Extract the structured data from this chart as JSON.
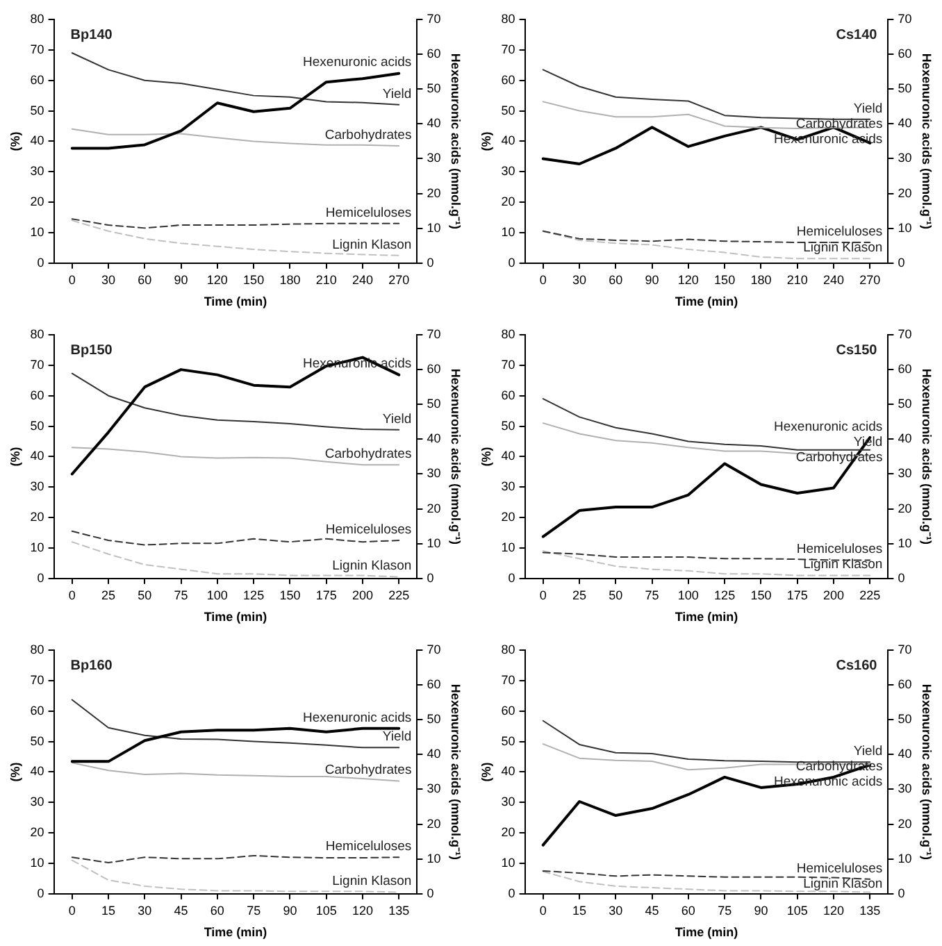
{
  "chart_data": [
    {
      "type": "line",
      "title": "Bp140",
      "xlabel": "Time (min)",
      "ylabel": "(%)",
      "y2label": "Hexenuronic acids (mmol.g⁻¹)",
      "categories": [
        "0",
        "30",
        "60",
        "90",
        "120",
        "150",
        "180",
        "210",
        "240",
        "270"
      ],
      "ylim": [
        0,
        80
      ],
      "yticks": [
        0,
        10,
        20,
        30,
        40,
        50,
        60,
        70,
        80
      ],
      "y2lim": [
        0,
        70
      ],
      "y2ticks": [
        0,
        10,
        20,
        30,
        40,
        50,
        60,
        70
      ],
      "grid": false,
      "legend": false,
      "marker": "none",
      "series": [
        {
          "name": "Hexenuronic acids",
          "color": "#000000",
          "axis": "y2",
          "line_style": "solid",
          "values": [
            33,
            33,
            34,
            38,
            46,
            43.5,
            44.5,
            52,
            53,
            54.5
          ]
        },
        {
          "name": "Yield",
          "color": "#333333",
          "line_style": "solid",
          "values": [
            69,
            63.5,
            60,
            59,
            57,
            55,
            54.5,
            53,
            52.7,
            52
          ]
        },
        {
          "name": "Carbohydrates",
          "color": "#b0b0b0",
          "line_style": "solid",
          "values": [
            44,
            42.2,
            42.2,
            42.5,
            41.2,
            40,
            39.3,
            38.8,
            38.8,
            38.5
          ]
        },
        {
          "name": "Hemiceluloses",
          "color": "#333333",
          "line_style": "dashed",
          "values": [
            14.5,
            12.5,
            11.5,
            12.5,
            12.5,
            12.5,
            12.8,
            13,
            13,
            13
          ]
        },
        {
          "name": "Lignin Klason",
          "color": "#c0c0c0",
          "line_style": "dashed",
          "values": [
            14,
            10.5,
            8,
            6.5,
            5.5,
            4.5,
            3.8,
            3.2,
            2.8,
            2.5
          ]
        }
      ]
    },
    {
      "type": "line",
      "title": "Cs140",
      "xlabel": "Time (min)",
      "ylabel": "(%)",
      "y2label": "Hexenuronic acids (mmol.g⁻¹)",
      "categories": [
        "0",
        "30",
        "60",
        "90",
        "120",
        "150",
        "180",
        "210",
        "240",
        "270"
      ],
      "ylim": [
        0,
        80
      ],
      "yticks": [
        0,
        10,
        20,
        30,
        40,
        50,
        60,
        70,
        80
      ],
      "y2lim": [
        0,
        70
      ],
      "y2ticks": [
        0,
        10,
        20,
        30,
        40,
        50,
        60,
        70
      ],
      "grid": false,
      "legend": false,
      "marker": "none",
      "series": [
        {
          "name": "Yield",
          "color": "#333333",
          "line_style": "solid",
          "values": [
            63.5,
            58,
            54.5,
            53.8,
            53.2,
            48.5,
            47.8,
            47.5,
            47.2,
            47.2
          ]
        },
        {
          "name": "Carbohydrates",
          "color": "#b0b0b0",
          "line_style": "solid",
          "values": [
            53,
            50,
            48,
            48,
            48.8,
            45,
            44.5,
            44.2,
            44.5,
            44.5
          ]
        },
        {
          "name": "Hexenuronic acids",
          "color": "#000000",
          "axis": "y2",
          "line_style": "solid",
          "values": [
            30,
            28.5,
            33,
            39,
            33.5,
            36.5,
            39,
            35.5,
            39,
            34.5
          ]
        },
        {
          "name": "Hemiceluloses",
          "color": "#333333",
          "line_style": "dashed",
          "values": [
            10.5,
            8,
            7.5,
            7.2,
            7.8,
            7.2,
            7,
            6.8,
            6.8,
            6.8
          ]
        },
        {
          "name": "Lignin Klason",
          "color": "#c0c0c0",
          "line_style": "dashed",
          "values": [
            10.5,
            7.5,
            6.5,
            6,
            4.5,
            3.5,
            2,
            1.5,
            1.5,
            1.5
          ]
        }
      ]
    },
    {
      "type": "line",
      "title": "Bp150",
      "xlabel": "Time (min)",
      "ylabel": "(%)",
      "y2label": "Hexenuronic acids (mmol.g⁻¹)",
      "categories": [
        "0",
        "25",
        "50",
        "75",
        "100",
        "125",
        "150",
        "175",
        "200",
        "225"
      ],
      "ylim": [
        0,
        80
      ],
      "yticks": [
        0,
        10,
        20,
        30,
        40,
        50,
        60,
        70,
        80
      ],
      "y2lim": [
        0,
        70
      ],
      "y2ticks": [
        0,
        10,
        20,
        30,
        40,
        50,
        60,
        70
      ],
      "grid": false,
      "legend": false,
      "marker": "none",
      "series": [
        {
          "name": "Hexenuronic acids",
          "color": "#000000",
          "axis": "y2",
          "line_style": "solid",
          "values": [
            30,
            42,
            55,
            60,
            58.5,
            55.5,
            55,
            61,
            63.5,
            58.5
          ]
        },
        {
          "name": "Yield",
          "color": "#333333",
          "line_style": "solid",
          "values": [
            67.3,
            60,
            56,
            53.5,
            52,
            51.5,
            50.8,
            49.8,
            49,
            48.8
          ]
        },
        {
          "name": "Carbohydrates",
          "color": "#b0b0b0",
          "line_style": "solid",
          "values": [
            43,
            42.5,
            41.5,
            40,
            39.5,
            39.7,
            39.5,
            38.3,
            37.3,
            37.3
          ]
        },
        {
          "name": "Hemiceluloses",
          "color": "#333333",
          "line_style": "dashed",
          "values": [
            15.5,
            12.5,
            11,
            11.5,
            11.5,
            13,
            12,
            13,
            12,
            12.5
          ]
        },
        {
          "name": "Lignin Klason",
          "color": "#c0c0c0",
          "line_style": "dashed",
          "values": [
            12,
            8,
            4.5,
            3,
            1.5,
            1.5,
            1,
            1,
            1,
            0.5
          ]
        }
      ]
    },
    {
      "type": "line",
      "title": "Cs150",
      "xlabel": "Time (min)",
      "ylabel": "(%)",
      "y2label": "Hexenuronic acids (mmol.g⁻¹)",
      "categories": [
        "0",
        "25",
        "50",
        "75",
        "100",
        "125",
        "150",
        "175",
        "200",
        "225"
      ],
      "ylim": [
        0,
        80
      ],
      "yticks": [
        0,
        10,
        20,
        30,
        40,
        50,
        60,
        70,
        80
      ],
      "y2lim": [
        0,
        70
      ],
      "y2ticks": [
        0,
        10,
        20,
        30,
        40,
        50,
        60,
        70
      ],
      "grid": false,
      "legend": false,
      "marker": "none",
      "series": [
        {
          "name": "Yield",
          "color": "#333333",
          "line_style": "solid",
          "values": [
            59,
            53,
            49.5,
            47.5,
            45,
            44,
            43.5,
            42.2,
            42.2,
            42.2
          ]
        },
        {
          "name": "Carbohydrates",
          "color": "#b0b0b0",
          "line_style": "solid",
          "values": [
            51,
            47.5,
            45.3,
            44.5,
            43,
            41.8,
            41.8,
            41,
            40.5,
            40.3
          ]
        },
        {
          "name": "Hexenuronic acids",
          "color": "#000000",
          "axis": "y2",
          "line_style": "solid",
          "values": [
            12,
            19.5,
            20.5,
            20.5,
            24,
            33,
            27,
            24.5,
            26,
            40.5
          ]
        },
        {
          "name": "Hemiceluloses",
          "color": "#333333",
          "line_style": "dashed",
          "values": [
            8.5,
            8,
            7,
            7,
            7,
            6.5,
            6.5,
            6.3,
            6,
            6
          ]
        },
        {
          "name": "Lignin Klason",
          "color": "#c0c0c0",
          "line_style": "dashed",
          "values": [
            9,
            6.5,
            4,
            3,
            2.5,
            1.5,
            1.5,
            1,
            1,
            1
          ]
        }
      ]
    },
    {
      "type": "line",
      "title": "Bp160",
      "xlabel": "Time (min)",
      "ylabel": "(%)",
      "y2label": "Hexenuronic acids (mmol.g⁻¹)",
      "categories": [
        "0",
        "15",
        "30",
        "45",
        "60",
        "75",
        "90",
        "105",
        "120",
        "135"
      ],
      "ylim": [
        0,
        80
      ],
      "yticks": [
        0,
        10,
        20,
        30,
        40,
        50,
        60,
        70,
        80
      ],
      "y2lim": [
        0,
        70
      ],
      "y2ticks": [
        0,
        10,
        20,
        30,
        40,
        50,
        60,
        70
      ],
      "grid": false,
      "legend": false,
      "marker": "none",
      "series": [
        {
          "name": "Hexenuronic acids",
          "color": "#000000",
          "axis": "y2",
          "line_style": "solid",
          "values": [
            38,
            38,
            44,
            46.5,
            47,
            47,
            47.5,
            46.5,
            47.5,
            47.5
          ]
        },
        {
          "name": "Yield",
          "color": "#333333",
          "line_style": "solid",
          "values": [
            63.7,
            54.5,
            52,
            50.8,
            50.7,
            50,
            49.5,
            48.8,
            48,
            48
          ]
        },
        {
          "name": "Carbohydrates",
          "color": "#b0b0b0",
          "line_style": "solid",
          "values": [
            43,
            40.5,
            39.2,
            39.5,
            39,
            38.8,
            38.5,
            38.5,
            37.8,
            37
          ]
        },
        {
          "name": "Hemiceluloses",
          "color": "#333333",
          "line_style": "dashed",
          "values": [
            12,
            10.2,
            12,
            11.5,
            11.5,
            12.5,
            12,
            11.8,
            11.8,
            12
          ]
        },
        {
          "name": "Lignin Klason",
          "color": "#c0c0c0",
          "line_style": "dashed",
          "values": [
            11,
            4.5,
            2.5,
            1.5,
            1,
            1,
            0.8,
            0.8,
            0.8,
            0.5
          ]
        }
      ]
    },
    {
      "type": "line",
      "title": "Cs160",
      "xlabel": "Time (min)",
      "ylabel": "(%)",
      "y2label": "Hexenuronic acids (mmol.g⁻¹)",
      "categories": [
        "0",
        "15",
        "30",
        "45",
        "60",
        "75",
        "90",
        "105",
        "120",
        "135"
      ],
      "ylim": [
        0,
        80
      ],
      "yticks": [
        0,
        10,
        20,
        30,
        40,
        50,
        60,
        70,
        80
      ],
      "y2lim": [
        0,
        70
      ],
      "y2ticks": [
        0,
        10,
        20,
        30,
        40,
        50,
        60,
        70
      ],
      "grid": false,
      "legend": false,
      "marker": "none",
      "series": [
        {
          "name": "Yield",
          "color": "#333333",
          "line_style": "solid",
          "values": [
            56.8,
            49,
            46.3,
            46,
            44.2,
            43.7,
            43.5,
            43.2,
            43.2,
            43.2
          ]
        },
        {
          "name": "Carbohydrates",
          "color": "#b0b0b0",
          "line_style": "solid",
          "values": [
            49.2,
            44.5,
            43.8,
            43.5,
            40.7,
            41.3,
            42.5,
            42.5,
            42.5,
            42.5
          ]
        },
        {
          "name": "Hexenuronic acids",
          "color": "#000000",
          "axis": "y2",
          "line_style": "solid",
          "values": [
            14,
            26.5,
            22.5,
            24.5,
            28.5,
            33.5,
            30.5,
            31.5,
            33.5,
            37
          ]
        },
        {
          "name": "Hemiceluloses",
          "color": "#333333",
          "line_style": "dashed",
          "values": [
            7.5,
            6.8,
            5.8,
            6.2,
            5.8,
            5.5,
            5.5,
            5.5,
            5.3,
            4.8
          ]
        },
        {
          "name": "Lignin Klason",
          "color": "#c0c0c0",
          "line_style": "dashed",
          "values": [
            7.3,
            4,
            2.5,
            2,
            1.5,
            1,
            1,
            0.8,
            0.8,
            0.5
          ]
        }
      ]
    }
  ]
}
